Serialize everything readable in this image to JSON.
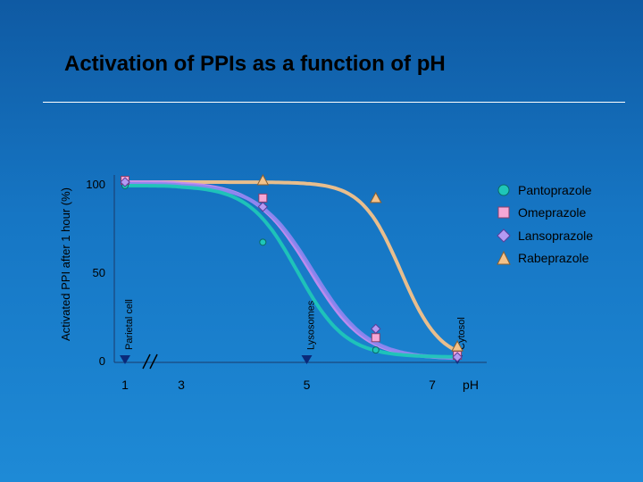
{
  "title": "Activation of PPIs as a function of pH",
  "colors": {
    "background_top": "#0f5aa3",
    "background_bottom": "#1e8ad6",
    "triangle_marker": "#0a2a7a"
  },
  "chart_data": {
    "type": "line",
    "title": "Activation of PPIs as a function of pH",
    "xlabel": "pH",
    "ylabel": "Activated PPI after 1 hour (%)",
    "xlim": [
      1,
      7.6
    ],
    "ylim": [
      0,
      100
    ],
    "x_ticks": [
      "1",
      "3",
      "5",
      "7"
    ],
    "y_ticks": [
      "0",
      "50",
      "100"
    ],
    "axis_break": "between 1 and 3",
    "compartments": [
      {
        "label": "Parietal cell",
        "x": 1
      },
      {
        "label": "Lysosomes",
        "x": 5
      },
      {
        "label": "Cytosol",
        "x": 7.4
      }
    ],
    "series": [
      {
        "name": "Pantoprazole",
        "color": "#1fc6b8",
        "marker": "circle",
        "curve": {
          "max": 99,
          "min": 2,
          "midpoint": 4.85,
          "slope": 2.6
        },
        "points": [
          [
            1,
            99
          ],
          [
            4.3,
            67
          ],
          [
            6.1,
            6
          ],
          [
            7.4,
            2
          ]
        ]
      },
      {
        "name": "Omeprazole",
        "color": "#c58cf0",
        "marker": "square",
        "curve": {
          "max": 101,
          "min": 1,
          "midpoint": 5.05,
          "slope": 2.3
        },
        "points": [
          [
            1,
            102
          ],
          [
            4.3,
            92
          ],
          [
            6.1,
            13
          ],
          [
            7.4,
            3
          ]
        ]
      },
      {
        "name": "Lansoprazole",
        "color": "#8b86ee",
        "marker": "diamond",
        "curve": {
          "max": 100,
          "min": 1,
          "midpoint": 5.1,
          "slope": 2.3
        },
        "points": [
          [
            1,
            101
          ],
          [
            4.3,
            87
          ],
          [
            6.1,
            18
          ],
          [
            7.4,
            2
          ]
        ]
      },
      {
        "name": "Rabeprazole",
        "color": "#f3c28a",
        "marker": "triangle",
        "curve": {
          "max": 101,
          "min": 0,
          "midpoint": 6.5,
          "slope": 3.2
        },
        "points": [
          [
            4.3,
            102
          ],
          [
            6.1,
            92
          ],
          [
            7.4,
            8
          ]
        ]
      }
    ]
  }
}
